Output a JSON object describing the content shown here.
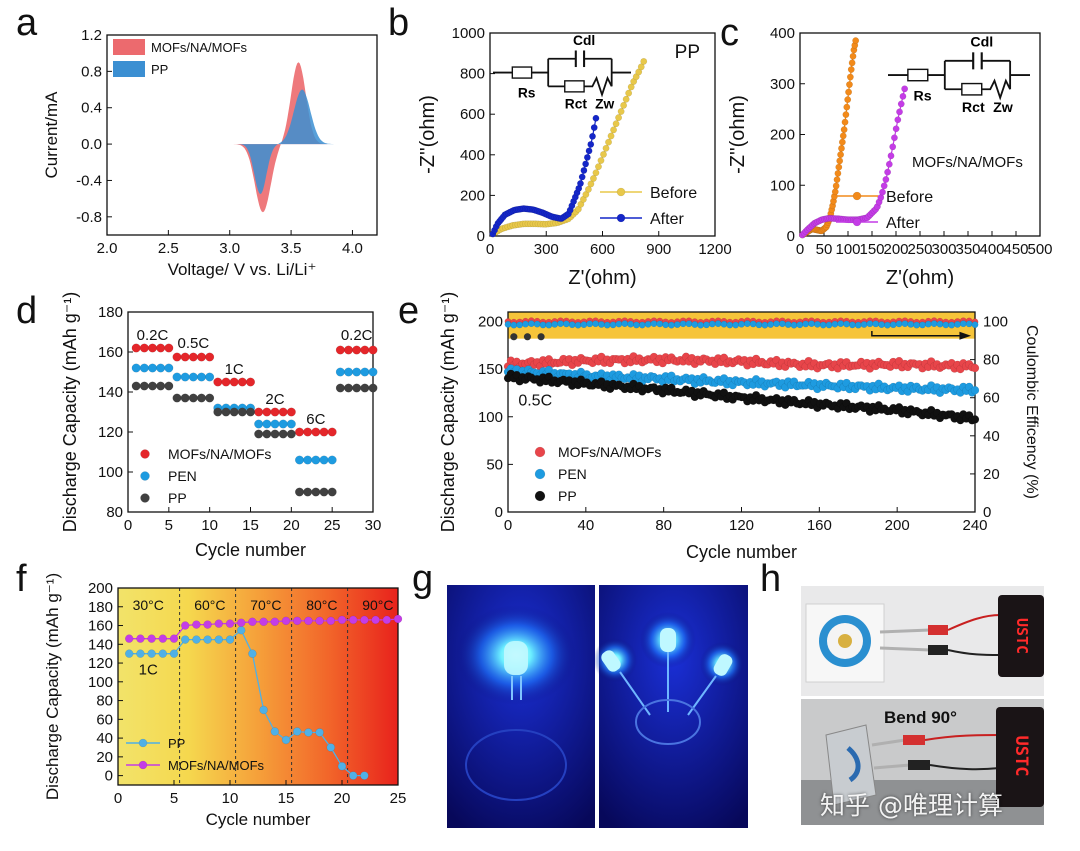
{
  "panels": {
    "a": "a",
    "b": "b",
    "c": "c",
    "d": "d",
    "e": "e",
    "f": "f",
    "g": "g",
    "h": "h"
  },
  "colors": {
    "red": "#e4262a",
    "blue": "#1e9be0",
    "black": "#1f1f1f",
    "orange": "#f28a1a",
    "purple": "#c43ce6",
    "navy": "#1426c8",
    "gold": "#e8c84a"
  },
  "photos": {
    "h_bend_label": "Bend 90°",
    "watermark": "知乎 @唯理计算",
    "h_display_text": "USTC"
  },
  "chart_data": [
    {
      "panel": "a",
      "type": "area",
      "xlabel": "Voltage/ V vs. Li/Li⁺",
      "ylabel": "Current/mA",
      "xlim": [
        2.0,
        4.2
      ],
      "ylim": [
        -1.0,
        1.2
      ],
      "xticks": [
        "2.0",
        "2.5",
        "3.0",
        "3.5",
        "4.0"
      ],
      "yticks": [
        "-0.8",
        "-0.4",
        "0.0",
        "0.4",
        "0.8",
        "1.2"
      ],
      "series": [
        {
          "name": "MOFs/NA/MOFs",
          "color": "#e8595e",
          "peaks": {
            "cathodic_V": 3.27,
            "cathodic_mA": -0.75,
            "anodic_V": 3.56,
            "anodic_mA": 0.9
          }
        },
        {
          "name": "PP",
          "color": "#2f8fd6",
          "peaks": {
            "cathodic_V": 3.25,
            "cathodic_mA": -0.55,
            "anodic_V": 3.59,
            "anodic_mA": 0.6
          }
        }
      ]
    },
    {
      "panel": "b",
      "type": "scatter",
      "title": "PP",
      "xlabel": "Z'(ohm)",
      "ylabel": "-Z''(ohm)",
      "xlim": [
        0,
        1200
      ],
      "ylim": [
        0,
        1000
      ],
      "xticks": [
        "0",
        "300",
        "600",
        "900",
        "1200"
      ],
      "yticks": [
        "0",
        "200",
        "400",
        "600",
        "800",
        "1000"
      ],
      "circuit": [
        "Rs",
        "Cdl",
        "Rct",
        "Zw"
      ],
      "series": [
        {
          "name": "Before",
          "color": "#e8c84a",
          "x": [
            15,
            60,
            120,
            180,
            240,
            300,
            360,
            420,
            470,
            520,
            560,
            600,
            640,
            680,
            720,
            760,
            800,
            820
          ],
          "y": [
            10,
            35,
            52,
            60,
            60,
            58,
            65,
            85,
            130,
            220,
            300,
            390,
            480,
            570,
            660,
            750,
            820,
            860
          ]
        },
        {
          "name": "After",
          "color": "#1426c8",
          "x": [
            15,
            40,
            80,
            130,
            180,
            230,
            280,
            330,
            380,
            420,
            450,
            480,
            500,
            520,
            540,
            555,
            565
          ],
          "y": [
            10,
            60,
            105,
            128,
            135,
            130,
            115,
            95,
            85,
            110,
            180,
            250,
            320,
            390,
            460,
            530,
            580
          ]
        }
      ]
    },
    {
      "panel": "c",
      "type": "scatter",
      "title": "MOFs/NA/MOFs",
      "xlabel": "Z'(ohm)",
      "ylabel": "-Z''(ohm)",
      "xlim": [
        0,
        500
      ],
      "ylim": [
        0,
        400
      ],
      "xticks": [
        "0",
        "50",
        "100",
        "150",
        "200",
        "250",
        "300",
        "350",
        "400",
        "450",
        "500"
      ],
      "yticks": [
        "0",
        "100",
        "200",
        "300",
        "400"
      ],
      "circuit": [
        "Rs",
        "Cdl",
        "Rct",
        "Zw"
      ],
      "series": [
        {
          "name": "Before",
          "color": "#f28a1a",
          "x": [
            5,
            15,
            25,
            35,
            45,
            55,
            62,
            68,
            74,
            80,
            86,
            92,
            97,
            102,
            107,
            112,
            116
          ],
          "y": [
            2,
            8,
            14,
            12,
            10,
            18,
            35,
            60,
            90,
            130,
            170,
            210,
            250,
            290,
            330,
            365,
            385
          ]
        },
        {
          "name": "After",
          "color": "#c43ce6",
          "x": [
            5,
            15,
            30,
            45,
            60,
            80,
            100,
            120,
            140,
            160,
            170,
            180,
            188,
            196,
            204,
            212,
            218
          ],
          "y": [
            2,
            12,
            25,
            32,
            35,
            34,
            32,
            32,
            36,
            55,
            80,
            115,
            150,
            190,
            230,
            265,
            290
          ]
        }
      ]
    },
    {
      "panel": "d",
      "type": "scatter",
      "xlabel": "Cycle number",
      "ylabel": "Discharge Capacity (mAh g⁻¹)",
      "xlim": [
        0,
        30
      ],
      "ylim": [
        80,
        180
      ],
      "xticks": [
        "0",
        "5",
        "10",
        "15",
        "20",
        "25",
        "30"
      ],
      "yticks": [
        "80",
        "100",
        "120",
        "140",
        "160",
        "180"
      ],
      "rates": [
        {
          "label": "0.2C",
          "x": 3,
          "y": 166
        },
        {
          "label": "0.5C",
          "x": 8,
          "y": 162
        },
        {
          "label": "1C",
          "x": 13,
          "y": 149
        },
        {
          "label": "2C",
          "x": 18,
          "y": 134
        },
        {
          "label": "6C",
          "x": 23,
          "y": 124
        },
        {
          "label": "0.2C",
          "x": 28,
          "y": 166
        }
      ],
      "series": [
        {
          "name": "MOFs/NA/MOFs",
          "color": "#e4262a",
          "values": [
            162,
            157.5,
            145,
            130,
            120,
            161
          ]
        },
        {
          "name": "PEN",
          "color": "#1e9be0",
          "values": [
            152,
            147.5,
            132,
            124,
            106,
            150
          ]
        },
        {
          "name": "PP",
          "color": "#404040",
          "values": [
            143,
            137,
            130,
            119,
            90,
            142
          ]
        }
      ]
    },
    {
      "panel": "e",
      "type": "scatter",
      "xlabel": "Cycle number",
      "ylabel": "Discharge Capacity (mAh g⁻¹)",
      "y2label": "Coulombic Efficency (%)",
      "xlim": [
        0,
        240
      ],
      "ylim": [
        0,
        210
      ],
      "y2lim": [
        0,
        105
      ],
      "xticks": [
        "0",
        "40",
        "80",
        "120",
        "160",
        "200",
        "240"
      ],
      "yticks": [
        "0",
        "50",
        "100",
        "150",
        "200"
      ],
      "y2ticks": [
        "0",
        "20",
        "40",
        "60",
        "80",
        "100"
      ],
      "rate_label": "0.5C",
      "series": [
        {
          "name": "MOFs/NA/MOFs",
          "color": "#e8454a",
          "x": [
            0,
            40,
            80,
            120,
            160,
            200,
            240
          ],
          "y": [
            155,
            159,
            160,
            158,
            154,
            155,
            153
          ]
        },
        {
          "name": "PEN",
          "color": "#1e9be0",
          "x": [
            0,
            40,
            80,
            120,
            160,
            200,
            240
          ],
          "y": [
            148,
            143,
            140,
            136,
            133,
            130,
            128
          ]
        },
        {
          "name": "PP",
          "color": "#111111",
          "x": [
            0,
            40,
            80,
            120,
            160,
            200,
            240
          ],
          "y": [
            142,
            135,
            128,
            120,
            113,
            107,
            98
          ]
        }
      ],
      "coulombic": [
        {
          "name": "MOFs/NA/MOFs",
          "color": "#e8454a",
          "y2": 100
        },
        {
          "name": "PEN",
          "color": "#1e9be0",
          "y2": 98.5
        }
      ]
    },
    {
      "panel": "f",
      "type": "line",
      "xlabel": "Cycle number",
      "ylabel": "Discharge Capacity (mAh g⁻¹)",
      "xlim": [
        0,
        25
      ],
      "ylim": [
        -10,
        200
      ],
      "xticks": [
        "0",
        "5",
        "10",
        "15",
        "20",
        "25"
      ],
      "yticks": [
        "0",
        "20",
        "40",
        "60",
        "80",
        "100",
        "120",
        "140",
        "160",
        "180",
        "200"
      ],
      "rate_label": "1C",
      "temps": [
        {
          "label": "30°C",
          "x": 2.7
        },
        {
          "label": "60°C",
          "x": 8.2
        },
        {
          "label": "70°C",
          "x": 13.2
        },
        {
          "label": "80°C",
          "x": 18.2
        },
        {
          "label": "90°C",
          "x": 23.2
        }
      ],
      "boundaries": [
        5.5,
        10.5,
        15.5,
        20.5
      ],
      "series": [
        {
          "name": "PP",
          "color": "#4fb0e6",
          "x": [
            1,
            2,
            3,
            4,
            5,
            6,
            7,
            8,
            9,
            10,
            11,
            12,
            13,
            14,
            15,
            16,
            17,
            18,
            19,
            20,
            21,
            22
          ],
          "y": [
            130,
            130,
            130,
            130,
            130,
            145,
            145,
            145,
            145,
            145,
            155,
            130,
            70,
            47,
            38,
            47,
            46,
            46,
            30,
            10,
            0,
            0
          ]
        },
        {
          "name": "MOFs/NA/MOFs",
          "color": "#c43ce6",
          "x": [
            1,
            2,
            3,
            4,
            5,
            6,
            7,
            8,
            9,
            10,
            11,
            12,
            13,
            14,
            15,
            16,
            17,
            18,
            19,
            20,
            21,
            22,
            23,
            24,
            25
          ],
          "y": [
            146,
            146,
            146,
            146,
            146,
            160,
            161,
            161,
            162,
            162,
            163,
            164,
            164,
            164,
            165,
            165,
            165,
            165,
            165,
            166,
            166,
            166,
            166,
            166,
            167
          ]
        }
      ]
    }
  ]
}
